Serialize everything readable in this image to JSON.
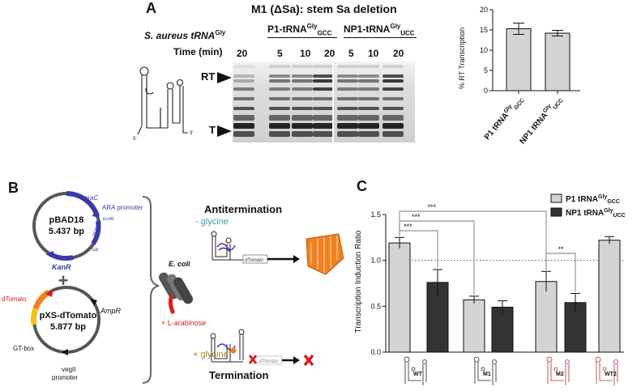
{
  "panelA": {
    "label": "A",
    "title": "M1 (ΔSa): stem Sa deletion",
    "species_label": "S. aureus tRNA",
    "species_sup": "Gly",
    "time_label": "Time (min)",
    "groups": [
      {
        "prefix": "P1-tRNA",
        "sup": "Gly",
        "sub": "GCC"
      },
      {
        "prefix": "NP1-tRNA",
        "sup": "Gly",
        "sub": "UCC"
      }
    ],
    "times": [
      "20",
      "5",
      "10",
      "20",
      "5",
      "10",
      "20"
    ],
    "band_rt": "RT",
    "band_t": "T",
    "prime5": "5'",
    "prime3": "3'"
  },
  "chart_data": [
    {
      "type": "bar",
      "ylabel": "% RT Transcription",
      "ylim": [
        0,
        20
      ],
      "yticks": [
        "0",
        "5",
        "10",
        "15",
        "20"
      ],
      "categories": [
        {
          "prefix": "P1 tRNA",
          "sup": "Gly",
          "sub": "GCC"
        },
        {
          "prefix": "NP1 tRNA",
          "sup": "Gly",
          "sub": "UCC"
        }
      ],
      "values": [
        15.3,
        14.2
      ],
      "errors": [
        1.4,
        0.7
      ],
      "bar_color": "#d4d4d4"
    },
    {
      "type": "bar",
      "ylabel": "Transcription Induction Ratio",
      "ylim": [
        0,
        1.5
      ],
      "yticks": [
        "0.0",
        "0.5",
        "1.0",
        "1.5"
      ],
      "reference_line": 1.0,
      "groups": [
        "WT",
        "M1",
        "M2",
        "WT2"
      ],
      "series": [
        {
          "name": "P1 tRNA",
          "sup": "Gly",
          "sub": "GCC",
          "color": "#d4d4d4",
          "values": [
            1.19,
            0.57,
            0.77,
            1.22
          ],
          "errors": [
            0.06,
            0.04,
            0.11,
            0.04
          ]
        },
        {
          "name": "NP1 tRNA",
          "sup": "Gly",
          "sub": "UCC",
          "color": "#333333",
          "values": [
            0.76,
            0.49,
            0.54,
            null
          ],
          "errors": [
            0.14,
            0.07,
            0.1,
            null
          ]
        }
      ],
      "significance": [
        "***",
        "***",
        "***",
        "**"
      ]
    }
  ],
  "panelB": {
    "label": "B",
    "plasmid1": {
      "name": "pBAD18",
      "size": "5.437 bp",
      "araC": "araC",
      "ara_promoter": "ARA promoter",
      "ecori": "- EcoRI",
      "ecori_mcs": "MCS",
      "sali": "- SalI",
      "kanR": "KanR"
    },
    "plus": "+",
    "plasmid2": {
      "name": "pXS-dTomato",
      "size": "5.877 bp",
      "dTomato": "dTomato",
      "ampR": "AmpR",
      "gtbox": "GT-box",
      "vegII": "vegII",
      "promoter": "promoter"
    },
    "ecoli": "E. coli",
    "arabinose": "+ L-arabinose",
    "antitermination": "Antitermination",
    "minus_glycine": "- glycine",
    "plus_glycine": "+ glycine",
    "termination": "Termination",
    "gene": "dTomato",
    "colors": {
      "blue": "#3a3aa6",
      "orange": "#f08020",
      "red": "#d42020",
      "yellow": "#f2c21b"
    }
  },
  "panelC": {
    "label": "C"
  }
}
